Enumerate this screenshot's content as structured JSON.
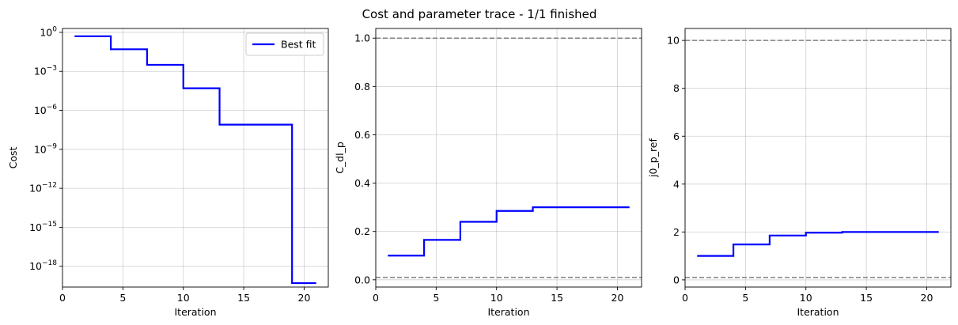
{
  "figure": {
    "title": "Cost and parameter trace - 1/1 finished"
  },
  "chart_data": [
    {
      "type": "line",
      "step": true,
      "title": "",
      "xlabel": "Iteration",
      "ylabel": "Cost",
      "yscale": "log",
      "xlim": [
        0,
        22
      ],
      "ylim_exp": [
        -19.6,
        0.3
      ],
      "x_ticks": [
        0,
        5,
        10,
        15,
        20
      ],
      "y_tick_exponents": [
        -18,
        -15,
        -12,
        -9,
        -6,
        -3,
        0
      ],
      "y_tick_base": "10",
      "grid": true,
      "legend": {
        "position": "top-right",
        "entries": [
          "Best fit"
        ]
      },
      "series": [
        {
          "name": "Best fit",
          "color": "#0000ff",
          "x": [
            1,
            4,
            7,
            10,
            13,
            19,
            21
          ],
          "y_exp": [
            -0.3,
            -1.3,
            -2.5,
            -4.3,
            -7.1,
            -19.3,
            -19.3
          ]
        }
      ],
      "hlines": []
    },
    {
      "type": "line",
      "step": true,
      "title": "",
      "xlabel": "Iteration",
      "ylabel": "C_dl_p",
      "yscale": "linear",
      "xlim": [
        0,
        22
      ],
      "ylim": [
        -0.03,
        1.04
      ],
      "x_ticks": [
        0,
        5,
        10,
        15,
        20
      ],
      "y_ticks": [
        0.0,
        0.2,
        0.4,
        0.6,
        0.8,
        1.0
      ],
      "y_tick_labels": [
        "0.0",
        "0.2",
        "0.4",
        "0.6",
        "0.8",
        "1.0"
      ],
      "grid": true,
      "series": [
        {
          "color": "#0000ff",
          "x": [
            1,
            4,
            7,
            10,
            13,
            21
          ],
          "y": [
            0.1,
            0.165,
            0.24,
            0.285,
            0.3,
            0.3
          ]
        }
      ],
      "hlines": [
        {
          "y": 1.0,
          "color": "#808080",
          "style": "dashed"
        },
        {
          "y": 0.01,
          "color": "#808080",
          "style": "dashed"
        }
      ]
    },
    {
      "type": "line",
      "step": true,
      "title": "",
      "xlabel": "Iteration",
      "ylabel": "j0_p_ref",
      "yscale": "linear",
      "xlim": [
        0,
        22
      ],
      "ylim": [
        -0.3,
        10.5
      ],
      "x_ticks": [
        0,
        5,
        10,
        15,
        20
      ],
      "y_ticks": [
        0,
        2,
        4,
        6,
        8,
        10
      ],
      "y_tick_labels": [
        "0",
        "2",
        "4",
        "6",
        "8",
        "10"
      ],
      "grid": true,
      "series": [
        {
          "color": "#0000ff",
          "x": [
            1,
            4,
            7,
            10,
            13,
            21
          ],
          "y": [
            1.0,
            1.48,
            1.85,
            1.97,
            2.0,
            2.0
          ]
        }
      ],
      "hlines": [
        {
          "y": 10.0,
          "color": "#808080",
          "style": "dashed"
        },
        {
          "y": 0.1,
          "color": "#808080",
          "style": "dashed"
        }
      ]
    }
  ]
}
